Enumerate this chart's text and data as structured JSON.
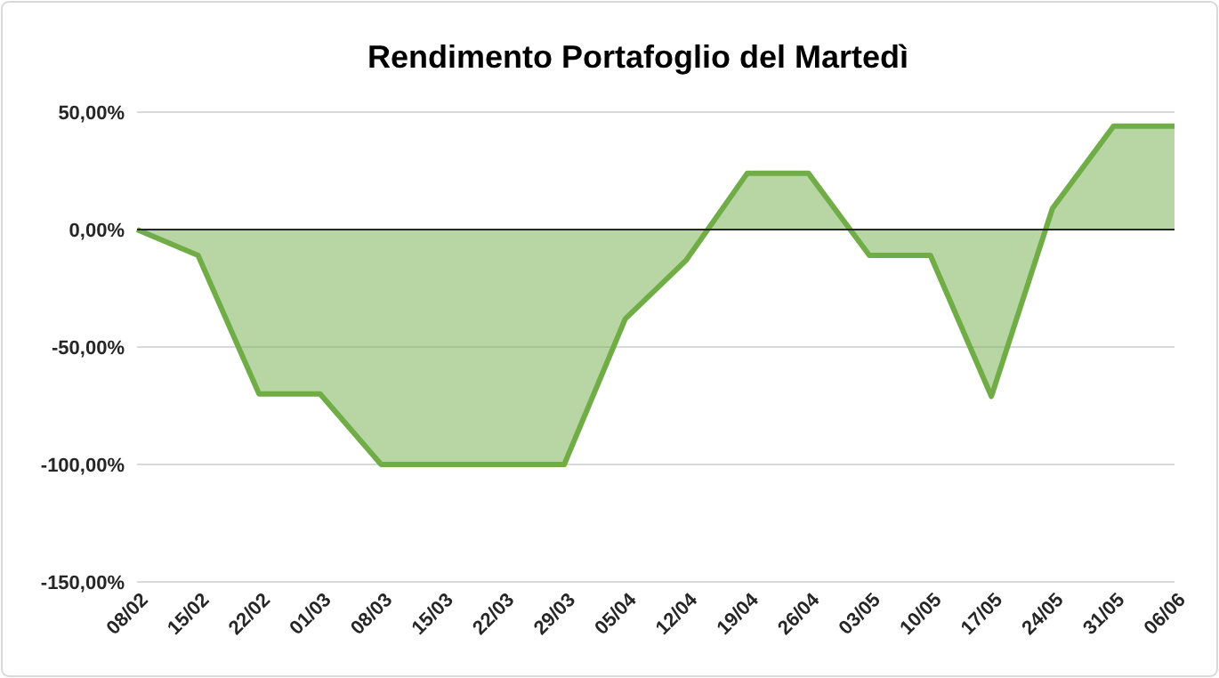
{
  "chart_data": {
    "type": "area",
    "title": "Rendimento Portafoglio del Martedì",
    "categories": [
      "08/02",
      "15/02",
      "22/02",
      "01/03",
      "08/03",
      "15/03",
      "22/03",
      "29/03",
      "05/04",
      "12/04",
      "19/04",
      "26/04",
      "03/05",
      "10/05",
      "17/05",
      "24/05",
      "31/05",
      "06/06"
    ],
    "series": [
      {
        "color": "#70ad47",
        "values": [
          0,
          -11,
          -70,
          -70,
          -100,
          -100,
          -100,
          -100,
          -38,
          -13,
          24,
          24,
          -11,
          -11,
          -71,
          9,
          44,
          44
        ]
      }
    ],
    "ylim": [
      -150,
      50
    ],
    "yticks": [
      {
        "value": -150,
        "label": "-150,00%"
      },
      {
        "value": -100,
        "label": "-100,00%"
      },
      {
        "value": -50,
        "label": "-50,00%"
      },
      {
        "value": 0,
        "label": "0,00%"
      },
      {
        "value": 50,
        "label": "50,00%"
      }
    ],
    "grid": "y"
  }
}
